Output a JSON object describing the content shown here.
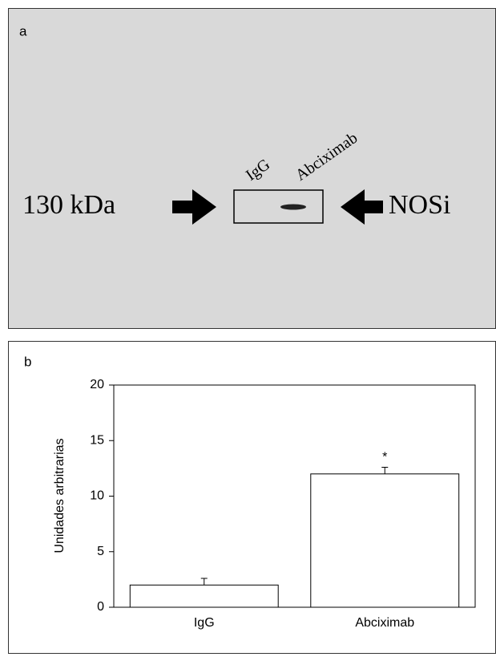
{
  "panel_a": {
    "label": "a",
    "left_label": "130  kDa",
    "right_label": "NOSi",
    "lane_labels": [
      "IgG",
      "Abciximab"
    ]
  },
  "chart_data": {
    "type": "bar",
    "panel_label": "b",
    "y_label": "Unidades arbitrarias",
    "categories": [
      "IgG",
      "Abciximab"
    ],
    "values": [
      2,
      12
    ],
    "errors": [
      0.6,
      0.6
    ],
    "annotation": "*",
    "color": "#ffffff",
    "ylim": [
      0,
      20
    ],
    "yticks": [
      0,
      5,
      10,
      15,
      20
    ]
  }
}
